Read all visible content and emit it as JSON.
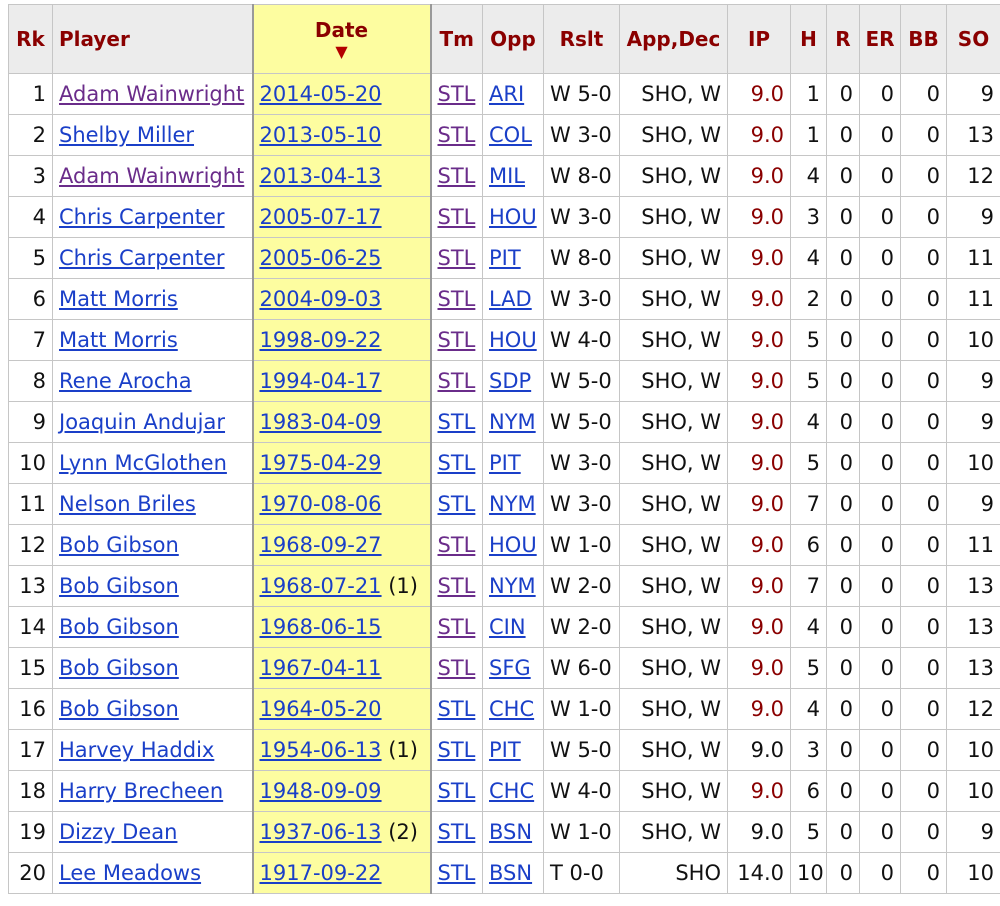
{
  "colors": {
    "header_text": "#8a0000",
    "link": "#1a3fc8",
    "visited_link": "#6a2c8a",
    "sorted_col_bg": "#fdfda0",
    "ip_highlight": "#8a0000"
  },
  "headers": {
    "rk": "Rk",
    "player": "Player",
    "date": "Date",
    "sort_icon": "▼",
    "tm": "Tm",
    "opp": "Opp",
    "rslt": "Rslt",
    "appdec": "App,Dec",
    "ip": "IP",
    "h": "H",
    "r": "R",
    "er": "ER",
    "bb": "BB",
    "so": "SO"
  },
  "rows": [
    {
      "rk": "1",
      "player": "Adam Wainwright",
      "player_visited": true,
      "date": "2014-05-20",
      "game": "",
      "tm": "STL",
      "tm_visited": true,
      "opp": "ARI",
      "rslt": "W 5-0",
      "appdec": "SHO, W",
      "ip": "9.0",
      "ip_red": true,
      "h": "1",
      "r": "0",
      "er": "0",
      "bb": "0",
      "so": "9"
    },
    {
      "rk": "2",
      "player": "Shelby Miller",
      "player_visited": false,
      "date": "2013-05-10",
      "game": "",
      "tm": "STL",
      "tm_visited": true,
      "opp": "COL",
      "rslt": "W 3-0",
      "appdec": "SHO, W",
      "ip": "9.0",
      "ip_red": true,
      "h": "1",
      "r": "0",
      "er": "0",
      "bb": "0",
      "so": "13"
    },
    {
      "rk": "3",
      "player": "Adam Wainwright",
      "player_visited": true,
      "date": "2013-04-13",
      "game": "",
      "tm": "STL",
      "tm_visited": true,
      "opp": "MIL",
      "rslt": "W 8-0",
      "appdec": "SHO, W",
      "ip": "9.0",
      "ip_red": true,
      "h": "4",
      "r": "0",
      "er": "0",
      "bb": "0",
      "so": "12"
    },
    {
      "rk": "4",
      "player": "Chris Carpenter",
      "player_visited": false,
      "date": "2005-07-17",
      "game": "",
      "tm": "STL",
      "tm_visited": true,
      "opp": "HOU",
      "rslt": "W 3-0",
      "appdec": "SHO, W",
      "ip": "9.0",
      "ip_red": true,
      "h": "3",
      "r": "0",
      "er": "0",
      "bb": "0",
      "so": "9"
    },
    {
      "rk": "5",
      "player": "Chris Carpenter",
      "player_visited": false,
      "date": "2005-06-25",
      "game": "",
      "tm": "STL",
      "tm_visited": true,
      "opp": "PIT",
      "rslt": "W 8-0",
      "appdec": "SHO, W",
      "ip": "9.0",
      "ip_red": true,
      "h": "4",
      "r": "0",
      "er": "0",
      "bb": "0",
      "so": "11"
    },
    {
      "rk": "6",
      "player": "Matt Morris",
      "player_visited": false,
      "date": "2004-09-03",
      "game": "",
      "tm": "STL",
      "tm_visited": true,
      "opp": "LAD",
      "rslt": "W 3-0",
      "appdec": "SHO, W",
      "ip": "9.0",
      "ip_red": true,
      "h": "2",
      "r": "0",
      "er": "0",
      "bb": "0",
      "so": "11"
    },
    {
      "rk": "7",
      "player": "Matt Morris",
      "player_visited": false,
      "date": "1998-09-22",
      "game": "",
      "tm": "STL",
      "tm_visited": true,
      "opp": "HOU",
      "rslt": "W 4-0",
      "appdec": "SHO, W",
      "ip": "9.0",
      "ip_red": true,
      "h": "5",
      "r": "0",
      "er": "0",
      "bb": "0",
      "so": "10"
    },
    {
      "rk": "8",
      "player": "Rene Arocha",
      "player_visited": false,
      "date": "1994-04-17",
      "game": "",
      "tm": "STL",
      "tm_visited": true,
      "opp": "SDP",
      "rslt": "W 5-0",
      "appdec": "SHO, W",
      "ip": "9.0",
      "ip_red": true,
      "h": "5",
      "r": "0",
      "er": "0",
      "bb": "0",
      "so": "9"
    },
    {
      "rk": "9",
      "player": "Joaquin Andujar",
      "player_visited": false,
      "date": "1983-04-09",
      "game": "",
      "tm": "STL",
      "tm_visited": false,
      "opp": "NYM",
      "rslt": "W 5-0",
      "appdec": "SHO, W",
      "ip": "9.0",
      "ip_red": true,
      "h": "4",
      "r": "0",
      "er": "0",
      "bb": "0",
      "so": "9"
    },
    {
      "rk": "10",
      "player": "Lynn McGlothen",
      "player_visited": false,
      "date": "1975-04-29",
      "game": "",
      "tm": "STL",
      "tm_visited": false,
      "opp": "PIT",
      "rslt": "W 3-0",
      "appdec": "SHO, W",
      "ip": "9.0",
      "ip_red": true,
      "h": "5",
      "r": "0",
      "er": "0",
      "bb": "0",
      "so": "10"
    },
    {
      "rk": "11",
      "player": "Nelson Briles",
      "player_visited": false,
      "date": "1970-08-06",
      "game": "",
      "tm": "STL",
      "tm_visited": false,
      "opp": "NYM",
      "rslt": "W 3-0",
      "appdec": "SHO, W",
      "ip": "9.0",
      "ip_red": true,
      "h": "7",
      "r": "0",
      "er": "0",
      "bb": "0",
      "so": "9"
    },
    {
      "rk": "12",
      "player": "Bob Gibson",
      "player_visited": false,
      "date": "1968-09-27",
      "game": "",
      "tm": "STL",
      "tm_visited": true,
      "opp": "HOU",
      "rslt": "W 1-0",
      "appdec": "SHO, W",
      "ip": "9.0",
      "ip_red": true,
      "h": "6",
      "r": "0",
      "er": "0",
      "bb": "0",
      "so": "11"
    },
    {
      "rk": "13",
      "player": "Bob Gibson",
      "player_visited": false,
      "date": "1968-07-21",
      "game": "(1)",
      "tm": "STL",
      "tm_visited": true,
      "opp": "NYM",
      "rslt": "W 2-0",
      "appdec": "SHO, W",
      "ip": "9.0",
      "ip_red": true,
      "h": "7",
      "r": "0",
      "er": "0",
      "bb": "0",
      "so": "13"
    },
    {
      "rk": "14",
      "player": "Bob Gibson",
      "player_visited": false,
      "date": "1968-06-15",
      "game": "",
      "tm": "STL",
      "tm_visited": true,
      "opp": "CIN",
      "rslt": "W 2-0",
      "appdec": "SHO, W",
      "ip": "9.0",
      "ip_red": true,
      "h": "4",
      "r": "0",
      "er": "0",
      "bb": "0",
      "so": "13"
    },
    {
      "rk": "15",
      "player": "Bob Gibson",
      "player_visited": false,
      "date": "1967-04-11",
      "game": "",
      "tm": "STL",
      "tm_visited": true,
      "opp": "SFG",
      "rslt": "W 6-0",
      "appdec": "SHO, W",
      "ip": "9.0",
      "ip_red": true,
      "h": "5",
      "r": "0",
      "er": "0",
      "bb": "0",
      "so": "13"
    },
    {
      "rk": "16",
      "player": "Bob Gibson",
      "player_visited": false,
      "date": "1964-05-20",
      "game": "",
      "tm": "STL",
      "tm_visited": false,
      "opp": "CHC",
      "rslt": "W 1-0",
      "appdec": "SHO, W",
      "ip": "9.0",
      "ip_red": true,
      "h": "4",
      "r": "0",
      "er": "0",
      "bb": "0",
      "so": "12"
    },
    {
      "rk": "17",
      "player": "Harvey Haddix",
      "player_visited": false,
      "date": "1954-06-13",
      "game": "(1)",
      "tm": "STL",
      "tm_visited": false,
      "opp": "PIT",
      "rslt": "W 5-0",
      "appdec": "SHO, W",
      "ip": "9.0",
      "ip_red": false,
      "h": "3",
      "r": "0",
      "er": "0",
      "bb": "0",
      "so": "10"
    },
    {
      "rk": "18",
      "player": "Harry Brecheen",
      "player_visited": false,
      "date": "1948-09-09",
      "game": "",
      "tm": "STL",
      "tm_visited": false,
      "opp": "CHC",
      "rslt": "W 4-0",
      "appdec": "SHO, W",
      "ip": "9.0",
      "ip_red": true,
      "h": "6",
      "r": "0",
      "er": "0",
      "bb": "0",
      "so": "10"
    },
    {
      "rk": "19",
      "player": "Dizzy Dean",
      "player_visited": false,
      "date": "1937-06-13",
      "game": "(2)",
      "tm": "STL",
      "tm_visited": false,
      "opp": "BSN",
      "rslt": "W 1-0",
      "appdec": "SHO, W",
      "ip": "9.0",
      "ip_red": false,
      "h": "5",
      "r": "0",
      "er": "0",
      "bb": "0",
      "so": "9"
    },
    {
      "rk": "20",
      "player": "Lee Meadows",
      "player_visited": false,
      "date": "1917-09-22",
      "game": "",
      "tm": "STL",
      "tm_visited": false,
      "opp": "BSN",
      "rslt": "T 0-0",
      "appdec": "SHO",
      "ip": "14.0",
      "ip_red": false,
      "h": "10",
      "r": "0",
      "er": "0",
      "bb": "0",
      "so": "10"
    }
  ]
}
